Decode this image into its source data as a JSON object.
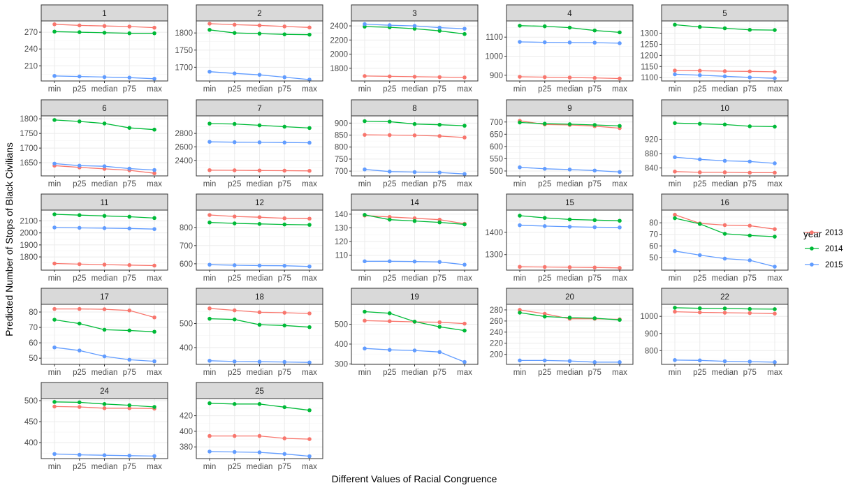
{
  "chart_data": {
    "type": "line",
    "xlabel": "Different Values of Racial Congruence",
    "ylabel": "Predicted Number of Stops of Black Civilians",
    "categories": [
      "min",
      "p25",
      "median",
      "p75",
      "max"
    ],
    "legend": {
      "title": "year",
      "placement": "right",
      "entries": [
        {
          "name": "2013",
          "color": "#F8766D"
        },
        {
          "name": "2014",
          "color": "#00BA38"
        },
        {
          "name": "2015",
          "color": "#619CFF"
        }
      ]
    },
    "grid": true,
    "facets": [
      {
        "label": "1",
        "ylim": [
          183,
          290
        ],
        "yticks": [
          210,
          240,
          270
        ],
        "ytick_labels": [
          "210",
          "240",
          "270"
        ],
        "series": [
          {
            "name": "2013",
            "values": [
              284,
              282,
              281,
              280,
              278
            ]
          },
          {
            "name": "2014",
            "values": [
              271,
              270,
              269,
              268,
              268
            ]
          },
          {
            "name": "2015",
            "values": [
              192,
              191,
              190,
              189,
              187
            ]
          }
        ]
      },
      {
        "label": "2",
        "ylim": [
          1660,
          1835
        ],
        "yticks": [
          1700,
          1750,
          1800
        ],
        "ytick_labels": [
          "1700",
          "1750",
          "1800"
        ],
        "series": [
          {
            "name": "2013",
            "values": [
              1827,
              1824,
              1822,
              1819,
              1816
            ]
          },
          {
            "name": "2014",
            "values": [
              1809,
              1800,
              1798,
              1796,
              1795
            ]
          },
          {
            "name": "2015",
            "values": [
              1687,
              1682,
              1678,
              1671,
              1664
            ]
          }
        ]
      },
      {
        "label": "3",
        "ylim": [
          1620,
          2470
        ],
        "yticks": [
          1800,
          2000,
          2200,
          2400
        ],
        "ytick_labels": [
          "1800",
          "2000",
          "2200",
          "2400"
        ],
        "series": [
          {
            "name": "2013",
            "values": [
              1690,
              1685,
              1680,
              1675,
              1670
            ]
          },
          {
            "name": "2014",
            "values": [
              2390,
              2380,
              2360,
              2330,
              2285
            ]
          },
          {
            "name": "2015",
            "values": [
              2425,
              2410,
              2400,
              2375,
              2360
            ]
          }
        ]
      },
      {
        "label": "4",
        "ylim": [
          870,
          1185
        ],
        "yticks": [
          900,
          1000,
          1100
        ],
        "ytick_labels": [
          "900",
          "1000",
          "1100"
        ],
        "series": [
          {
            "name": "2013",
            "values": [
              892,
              890,
              888,
              886,
              883
            ]
          },
          {
            "name": "2014",
            "values": [
              1160,
              1157,
              1150,
              1135,
              1125
            ]
          },
          {
            "name": "2015",
            "values": [
              1075,
              1073,
              1072,
              1071,
              1068
            ]
          }
        ]
      },
      {
        "label": "5",
        "ylim": [
          1085,
          1355
        ],
        "yticks": [
          1100,
          1150,
          1200,
          1250,
          1300
        ],
        "ytick_labels": [
          "1100",
          "1150",
          "1200",
          "1250",
          "1300"
        ],
        "series": [
          {
            "name": "2013",
            "values": [
              1132,
              1131,
              1129,
              1128,
              1126
            ]
          },
          {
            "name": "2014",
            "values": [
              1338,
              1328,
              1322,
              1315,
              1314
            ]
          },
          {
            "name": "2015",
            "values": [
              1115,
              1111,
              1106,
              1101,
              1097
            ]
          }
        ]
      },
      {
        "label": "6",
        "ylim": [
          1605,
          1810
        ],
        "yticks": [
          1650,
          1700,
          1750,
          1800
        ],
        "ytick_labels": [
          "1650",
          "1700",
          "1750",
          "1800"
        ],
        "series": [
          {
            "name": "2013",
            "values": [
              1640,
              1634,
              1629,
              1624,
              1614
            ]
          },
          {
            "name": "2014",
            "values": [
              1796,
              1791,
              1784,
              1769,
              1763
            ]
          },
          {
            "name": "2015",
            "values": [
              1647,
              1640,
              1638,
              1630,
              1625
            ]
          }
        ]
      },
      {
        "label": "7",
        "ylim": [
          2170,
          3060
        ],
        "yticks": [
          2400,
          2600,
          2800
        ],
        "ytick_labels": [
          "2400",
          "2600",
          "2800"
        ],
        "series": [
          {
            "name": "2013",
            "values": [
              2255,
              2253,
              2250,
              2248,
              2245
            ]
          },
          {
            "name": "2014",
            "values": [
              2945,
              2940,
              2920,
              2900,
              2880
            ]
          },
          {
            "name": "2015",
            "values": [
              2675,
              2670,
              2668,
              2665,
              2662
            ]
          }
        ]
      },
      {
        "label": "8",
        "ylim": [
          680,
          930
        ],
        "yticks": [
          700,
          750,
          800,
          850,
          900
        ],
        "ytick_labels": [
          "700",
          "750",
          "800",
          "850",
          "900"
        ],
        "series": [
          {
            "name": "2013",
            "values": [
              851,
              850,
              849,
              846,
              840
            ]
          },
          {
            "name": "2014",
            "values": [
              908,
              906,
              896,
              893,
              889
            ]
          },
          {
            "name": "2015",
            "values": [
              707,
              698,
              696,
              694,
              688
            ]
          }
        ]
      },
      {
        "label": "9",
        "ylim": [
          480,
          725
        ],
        "yticks": [
          500,
          550,
          600,
          650,
          700
        ],
        "ytick_labels": [
          "500",
          "550",
          "600",
          "650",
          "700"
        ],
        "series": [
          {
            "name": "2013",
            "values": [
              705,
              690,
              688,
              683,
              675
            ]
          },
          {
            "name": "2014",
            "values": [
              698,
              693,
              691,
              688,
              684
            ]
          },
          {
            "name": "2015",
            "values": [
              515,
              509,
              506,
              502,
              496
            ]
          }
        ]
      },
      {
        "label": "10",
        "ylim": [
          818,
          985
        ],
        "yticks": [
          840,
          880,
          920
        ],
        "ytick_labels": [
          "840",
          "880",
          "920"
        ],
        "series": [
          {
            "name": "2013",
            "values": [
              830,
              828,
              828,
              827,
              827
            ]
          },
          {
            "name": "2014",
            "values": [
              965,
              963,
              961,
              956,
              955
            ]
          },
          {
            "name": "2015",
            "values": [
              870,
              864,
              860,
              858,
              853
            ]
          }
        ]
      },
      {
        "label": "11",
        "ylim": [
          1690,
          2190
        ],
        "yticks": [
          1800,
          1900,
          2000,
          2100
        ],
        "ytick_labels": [
          "1800",
          "1900",
          "2000",
          "2100"
        ],
        "series": [
          {
            "name": "2013",
            "values": [
              1745,
              1740,
              1736,
              1732,
              1728
            ]
          },
          {
            "name": "2014",
            "values": [
              2155,
              2148,
              2142,
              2135,
              2124
            ]
          },
          {
            "name": "2015",
            "values": [
              2045,
              2042,
              2040,
              2037,
              2032
            ]
          }
        ]
      },
      {
        "label": "12",
        "ylim": [
          565,
          895
        ],
        "yticks": [
          600,
          700,
          800
        ],
        "ytick_labels": [
          "600",
          "700",
          "800"
        ],
        "series": [
          {
            "name": "2013",
            "values": [
              868,
              860,
              856,
              850,
              848
            ]
          },
          {
            "name": "2014",
            "values": [
              827,
              822,
              819,
              816,
              814
            ]
          },
          {
            "name": "2015",
            "values": [
              595,
              592,
              590,
              589,
              585
            ]
          }
        ]
      },
      {
        "label": "14",
        "ylim": [
          99,
          143
        ],
        "yticks": [
          110,
          120,
          130,
          140
        ],
        "ytick_labels": [
          "110",
          "120",
          "130",
          "140"
        ],
        "series": [
          {
            "name": "2013",
            "values": [
              139.0,
              138.0,
              137.0,
              136.0,
              133.0
            ]
          },
          {
            "name": "2014",
            "values": [
              139.5,
              136.0,
              135.0,
              134.0,
              132.5
            ]
          },
          {
            "name": "2015",
            "values": [
              105.5,
              105.5,
              105.3,
              105.0,
              103.0
            ]
          }
        ]
      },
      {
        "label": "15",
        "ylim": [
          1230,
          1500
        ],
        "yticks": [
          1300,
          1400
        ],
        "ytick_labels": [
          "1300",
          "1400"
        ],
        "series": [
          {
            "name": "2013",
            "values": [
              1245,
              1244,
              1243,
              1242,
              1240
            ]
          },
          {
            "name": "2014",
            "values": [
              1475,
              1465,
              1458,
              1455,
              1452
            ]
          },
          {
            "name": "2015",
            "values": [
              1432,
              1428,
              1425,
              1423,
              1422
            ]
          }
        ]
      },
      {
        "label": "16",
        "ylim": [
          39,
          91
        ],
        "yticks": [
          50,
          60,
          70,
          80
        ],
        "ytick_labels": [
          "50",
          "60",
          "70",
          "80"
        ],
        "series": [
          {
            "name": "2013",
            "values": [
              87,
              79.5,
              78,
              77.5,
              74.5
            ]
          },
          {
            "name": "2014",
            "values": [
              84,
              79,
              70.5,
              69,
              68
            ]
          },
          {
            "name": "2015",
            "values": [
              55.5,
              52,
              49,
              47.5,
              42
            ]
          }
        ]
      },
      {
        "label": "17",
        "ylim": [
          46,
          85
        ],
        "yticks": [
          50,
          60,
          70,
          80
        ],
        "ytick_labels": [
          "50",
          "60",
          "70",
          "80"
        ],
        "series": [
          {
            "name": "2013",
            "values": [
              82,
              82,
              81.8,
              81,
              76.5
            ]
          },
          {
            "name": "2014",
            "values": [
              75,
              72.5,
              68.5,
              68,
              67.2
            ]
          },
          {
            "name": "2015",
            "values": [
              57,
              55,
              51.2,
              49,
              48
            ]
          }
        ]
      },
      {
        "label": "18",
        "ylim": [
          330,
          580
        ],
        "yticks": [
          400,
          500
        ],
        "ytick_labels": [
          "400",
          "500"
        ],
        "series": [
          {
            "name": "2013",
            "values": [
              563,
              555,
              547,
              545,
              542
            ]
          },
          {
            "name": "2014",
            "values": [
              520,
              517,
              495,
              492,
              485
            ]
          },
          {
            "name": "2015",
            "values": [
              345,
              342,
              341,
              340,
              338
            ]
          }
        ]
      },
      {
        "label": "19",
        "ylim": [
          298,
          600
        ],
        "yticks": [
          300,
          400,
          500
        ],
        "ytick_labels": [
          "300",
          "400",
          "500"
        ],
        "series": [
          {
            "name": "2013",
            "values": [
              518,
              515,
              512,
              510,
              503
            ]
          },
          {
            "name": "2014",
            "values": [
              563,
              555,
              513,
              487,
              468
            ]
          },
          {
            "name": "2015",
            "values": [
              378,
              371,
              368,
              360,
              310
            ]
          }
        ]
      },
      {
        "label": "20",
        "ylim": [
          182,
          290
        ],
        "yticks": [
          200,
          220,
          240,
          260,
          280
        ],
        "ytick_labels": [
          "200",
          "220",
          "240",
          "260",
          "280"
        ],
        "series": [
          {
            "name": "2013",
            "values": [
              280,
              273,
              264,
              264,
              263
            ]
          },
          {
            "name": "2014",
            "values": [
              275,
              268,
              266,
              265,
              262
            ]
          },
          {
            "name": "2015",
            "values": [
              189,
              189,
              188,
              186,
              186
            ]
          }
        ]
      },
      {
        "label": "22",
        "ylim": [
          720,
          1070
        ],
        "yticks": [
          800,
          900,
          1000
        ],
        "ytick_labels": [
          "800",
          "900",
          "1000"
        ],
        "series": [
          {
            "name": "2013",
            "values": [
              1027,
              1023,
              1021,
              1019,
              1016
            ]
          },
          {
            "name": "2014",
            "values": [
              1050,
              1047,
              1046,
              1043,
              1042
            ]
          },
          {
            "name": "2015",
            "values": [
              745,
              743,
              738,
              736,
              733
            ]
          }
        ]
      },
      {
        "label": "24",
        "ylim": [
          362,
          505
        ],
        "yticks": [
          400,
          450,
          500
        ],
        "ytick_labels": [
          "400",
          "450",
          "500"
        ],
        "series": [
          {
            "name": "2013",
            "values": [
              486,
              485,
              482,
              482,
              481
            ]
          },
          {
            "name": "2014",
            "values": [
              497,
              496,
              492,
              489,
              485
            ]
          },
          {
            "name": "2015",
            "values": [
              373,
              371,
              370,
              369,
              368
            ]
          }
        ]
      },
      {
        "label": "25",
        "ylim": [
          365,
          442
        ],
        "yticks": [
          380,
          400,
          420
        ],
        "ytick_labels": [
          "380",
          "400",
          "420"
        ],
        "series": [
          {
            "name": "2013",
            "values": [
              394,
              394,
              394,
              391,
              390
            ]
          },
          {
            "name": "2014",
            "values": [
              436,
              435,
              435,
              431,
              427
            ]
          },
          {
            "name": "2015",
            "values": [
              374,
              373.5,
              373,
              371,
              368
            ]
          }
        ]
      }
    ]
  }
}
